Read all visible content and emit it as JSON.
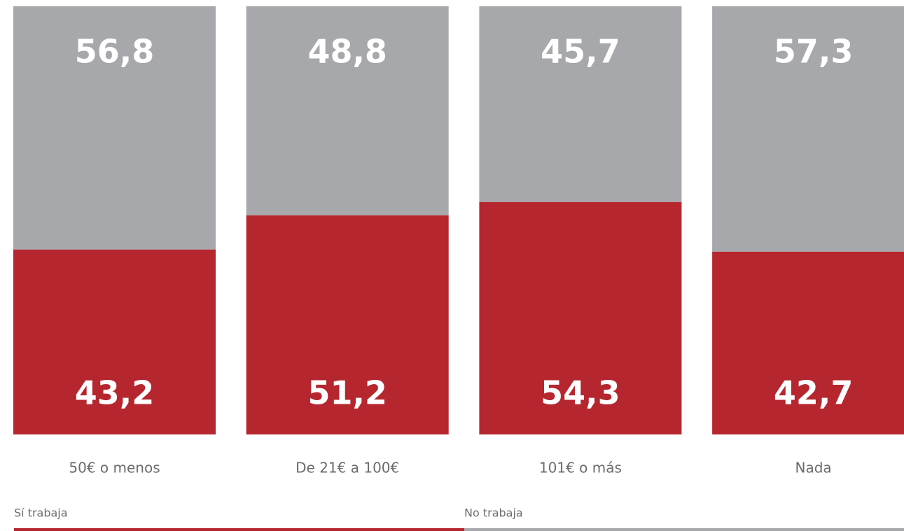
{
  "chart_data": {
    "type": "bar",
    "stacked": true,
    "categories": [
      "50€ o menos",
      "De 21€ a 100€",
      "101€ o más",
      "Nada"
    ],
    "series": [
      {
        "name": "Sí trabaja",
        "color": "#b5262f",
        "values": [
          43.2,
          51.2,
          54.3,
          42.7
        ],
        "value_labels": [
          "43,2",
          "51,2",
          "54,3",
          "42,7"
        ]
      },
      {
        "name": "No trabaja",
        "color": "#a7a8ab",
        "values": [
          56.8,
          48.8,
          45.7,
          57.3
        ],
        "value_labels": [
          "56,8",
          "48,8",
          "45,7",
          "57,3"
        ]
      }
    ],
    "ylim": [
      0,
      100
    ]
  }
}
